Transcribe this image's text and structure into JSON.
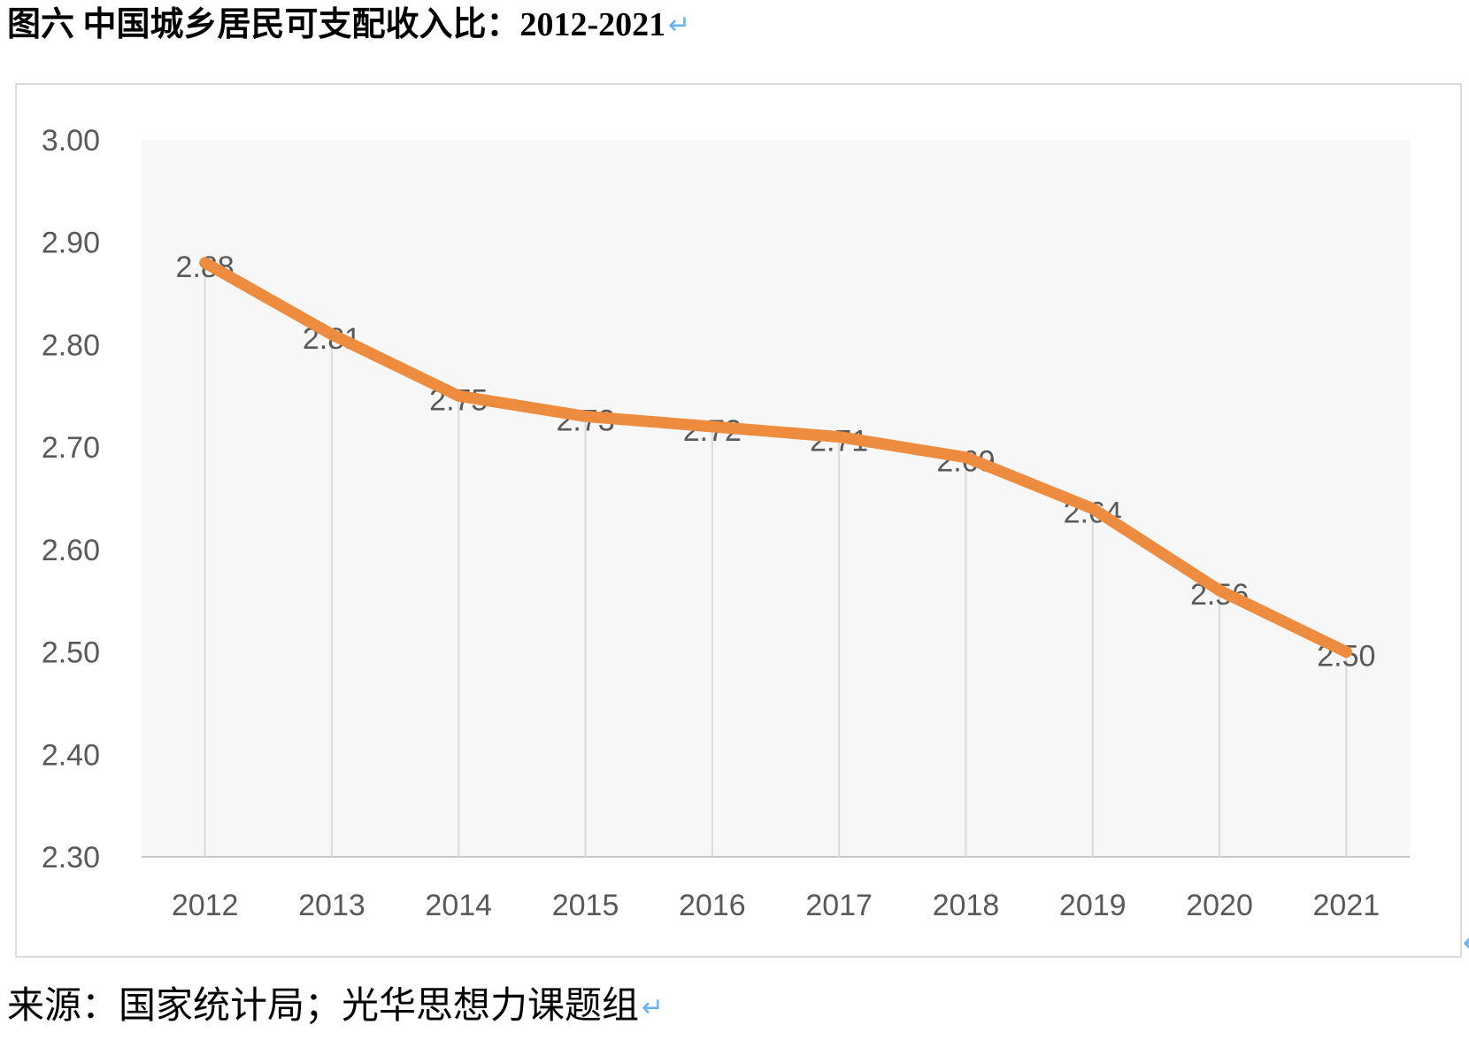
{
  "document": {
    "figure_title": "图六 中国城乡居民可支配收入比：2012-2021",
    "source_line": "来源：国家统计局；光华思想力课题组",
    "return_mark": "↵"
  },
  "colors": {
    "series_line": "#ED8C3E",
    "data_label": "#595959",
    "tick_label": "#595959",
    "axis_line": "#C6C6C6",
    "dropline": "#DADADA",
    "plot_background": "#F7F7F7",
    "frame_border": "#DCDCDC",
    "return_mark_blue": "#68B1F6",
    "title_text": "#000000"
  },
  "chart_data": {
    "type": "line",
    "title": "",
    "xlabel": "",
    "ylabel": "",
    "categories": [
      "2012",
      "2013",
      "2014",
      "2015",
      "2016",
      "2017",
      "2018",
      "2019",
      "2020",
      "2021"
    ],
    "values": [
      2.88,
      2.81,
      2.75,
      2.73,
      2.72,
      2.71,
      2.69,
      2.64,
      2.56,
      2.5
    ],
    "data_labels": [
      "2.88",
      "2.81",
      "2.75",
      "2.73",
      "2.72",
      "2.71",
      "2.69",
      "2.64",
      "2.56",
      "2.50"
    ],
    "ylim": [
      2.3,
      3.0
    ],
    "ytick_step": 0.1,
    "ytick_labels": [
      "3.00",
      "2.90",
      "2.80",
      "2.70",
      "2.60",
      "2.50",
      "2.40",
      "2.30"
    ],
    "legend": "none",
    "gridlines": "none",
    "droplines": true
  }
}
